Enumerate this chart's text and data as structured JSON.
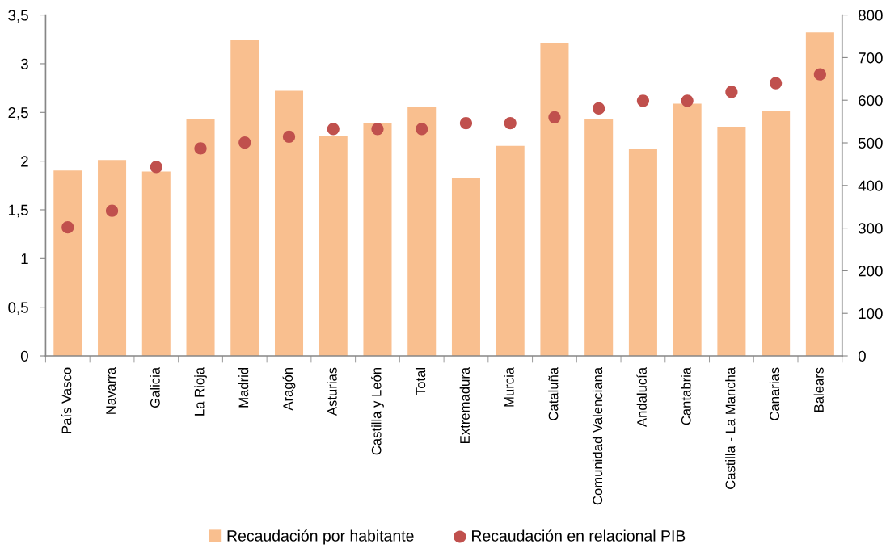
{
  "chart_data": {
    "type": "bar",
    "categories": [
      "País Vasco",
      "Navarra",
      "Galicia",
      "La Rioja",
      "Madrid",
      "Aragón",
      "Asturias",
      "Castilla y León",
      "Total",
      "Extremadura",
      "Murcia",
      "Cataluña",
      "Comunidad Valenciana",
      "Andalucía",
      "Cantabria",
      "Castilla - La Mancha",
      "Canarias",
      "Balears"
    ],
    "series": [
      {
        "name": "Recaudación por habitante",
        "axis": "y2",
        "color": "#f9bf8f",
        "values": [
          435,
          460,
          433,
          557,
          742,
          622,
          517,
          547,
          585,
          418,
          493,
          735,
          557,
          485,
          592,
          538,
          576,
          759
        ]
      },
      {
        "name": "Recaudación en relacional PIB",
        "type": "scatter",
        "axis": "y",
        "marker": "circle",
        "color": "#c0504d",
        "values": [
          1.32,
          1.49,
          1.94,
          2.13,
          2.19,
          2.25,
          2.33,
          2.33,
          2.33,
          2.39,
          2.39,
          2.45,
          2.54,
          2.62,
          2.62,
          2.71,
          2.8,
          2.89
        ]
      }
    ],
    "ylim": [
      0,
      3.5
    ],
    "yticks": [
      0,
      {
        "value": 0.5,
        "label": "0,5"
      },
      1,
      {
        "value": 1.5,
        "label": "1,5"
      },
      2,
      {
        "value": 2.5,
        "label": "2,5"
      },
      3,
      {
        "value": 3.5,
        "label": "3,5"
      }
    ],
    "y2lim": [
      0,
      800
    ],
    "y2ticks": [
      0,
      100,
      200,
      300,
      400,
      500,
      600,
      700,
      800
    ],
    "grid": false,
    "legend": "bottom"
  }
}
